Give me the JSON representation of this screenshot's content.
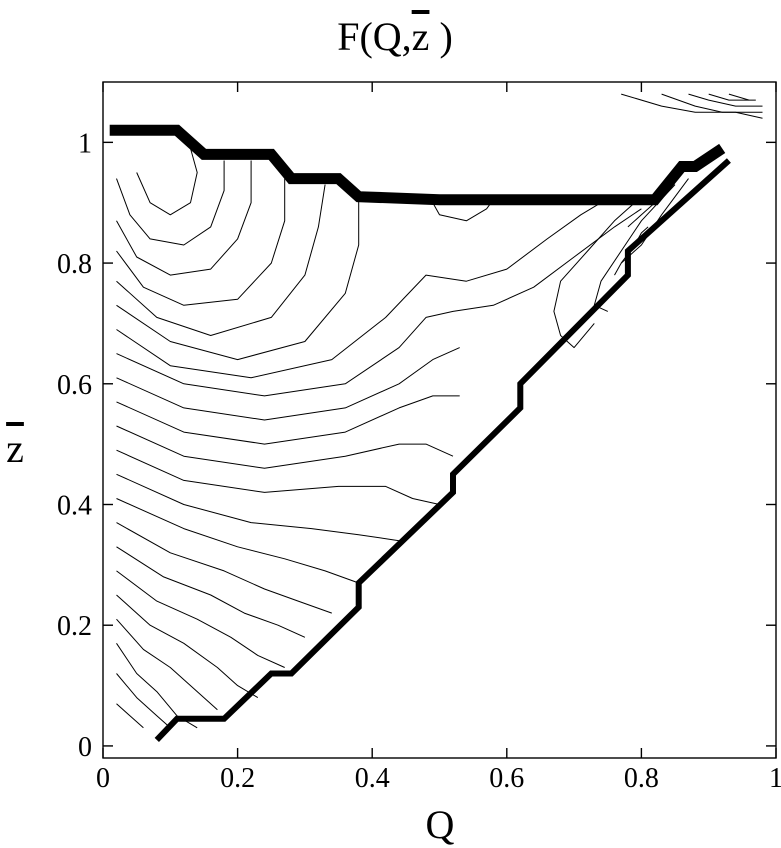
{
  "chart_data": {
    "type": "contour",
    "title_main": "F(Q,",
    "title_var": "z",
    "title_close": " )",
    "xlabel": "Q",
    "ylabel": "z",
    "xlim": [
      0,
      1
    ],
    "ylim": [
      -0.02,
      1.1
    ],
    "xticks": [
      0,
      0.2,
      0.4,
      0.6,
      0.8,
      1
    ],
    "xtick_labels": [
      "0",
      "0.2",
      "0.4",
      "0.6",
      "0.8",
      "1"
    ],
    "yticks": [
      0,
      0.2,
      0.4,
      0.6,
      0.8,
      1
    ],
    "ytick_labels": [
      "0",
      "0.2",
      "0.4",
      "0.6",
      "0.8",
      "1"
    ],
    "grid": false,
    "boundary_lower": [
      [
        0.08,
        0.01
      ],
      [
        0.11,
        0.045
      ],
      [
        0.18,
        0.045
      ],
      [
        0.25,
        0.12
      ],
      [
        0.28,
        0.12
      ],
      [
        0.38,
        0.23
      ],
      [
        0.38,
        0.27
      ],
      [
        0.52,
        0.42
      ],
      [
        0.52,
        0.45
      ],
      [
        0.62,
        0.56
      ],
      [
        0.62,
        0.6
      ],
      [
        0.78,
        0.78
      ],
      [
        0.78,
        0.82
      ],
      [
        0.93,
        0.97
      ]
    ],
    "boundary_upper": [
      [
        0.01,
        1.02
      ],
      [
        0.11,
        1.02
      ],
      [
        0.15,
        0.98
      ],
      [
        0.25,
        0.98
      ],
      [
        0.28,
        0.94
      ],
      [
        0.35,
        0.94
      ],
      [
        0.38,
        0.91
      ],
      [
        0.5,
        0.905
      ],
      [
        0.6,
        0.905
      ],
      [
        0.82,
        0.905
      ],
      [
        0.86,
        0.96
      ],
      [
        0.88,
        0.96
      ],
      [
        0.92,
        0.99
      ]
    ],
    "contours": [
      [
        [
          0.05,
          0.95
        ],
        [
          0.07,
          0.9
        ],
        [
          0.1,
          0.88
        ],
        [
          0.13,
          0.9
        ],
        [
          0.14,
          0.95
        ],
        [
          0.13,
          0.99
        ]
      ],
      [
        [
          0.02,
          0.94
        ],
        [
          0.04,
          0.88
        ],
        [
          0.07,
          0.84
        ],
        [
          0.12,
          0.83
        ],
        [
          0.16,
          0.86
        ],
        [
          0.18,
          0.92
        ],
        [
          0.18,
          0.97
        ]
      ],
      [
        [
          0.02,
          0.87
        ],
        [
          0.05,
          0.81
        ],
        [
          0.1,
          0.78
        ],
        [
          0.16,
          0.79
        ],
        [
          0.2,
          0.84
        ],
        [
          0.22,
          0.9
        ],
        [
          0.22,
          0.97
        ]
      ],
      [
        [
          0.02,
          0.82
        ],
        [
          0.06,
          0.76
        ],
        [
          0.12,
          0.73
        ],
        [
          0.2,
          0.74
        ],
        [
          0.25,
          0.8
        ],
        [
          0.27,
          0.87
        ],
        [
          0.27,
          0.94
        ]
      ],
      [
        [
          0.02,
          0.77
        ],
        [
          0.08,
          0.71
        ],
        [
          0.16,
          0.68
        ],
        [
          0.25,
          0.71
        ],
        [
          0.3,
          0.78
        ],
        [
          0.32,
          0.86
        ],
        [
          0.33,
          0.93
        ]
      ],
      [
        [
          0.02,
          0.73
        ],
        [
          0.1,
          0.67
        ],
        [
          0.2,
          0.64
        ],
        [
          0.3,
          0.67
        ],
        [
          0.36,
          0.75
        ],
        [
          0.38,
          0.83
        ],
        [
          0.38,
          0.91
        ]
      ],
      [
        [
          0.02,
          0.69
        ],
        [
          0.1,
          0.63
        ],
        [
          0.22,
          0.61
        ],
        [
          0.34,
          0.64
        ],
        [
          0.42,
          0.71
        ],
        [
          0.48,
          0.78
        ],
        [
          0.54,
          0.77
        ],
        [
          0.6,
          0.79
        ],
        [
          0.66,
          0.84
        ],
        [
          0.71,
          0.88
        ],
        [
          0.74,
          0.9
        ]
      ],
      [
        [
          0.02,
          0.65
        ],
        [
          0.12,
          0.6
        ],
        [
          0.24,
          0.58
        ],
        [
          0.36,
          0.6
        ],
        [
          0.44,
          0.66
        ],
        [
          0.48,
          0.71
        ],
        [
          0.52,
          0.72
        ],
        [
          0.58,
          0.73
        ],
        [
          0.64,
          0.76
        ],
        [
          0.7,
          0.81
        ],
        [
          0.76,
          0.86
        ],
        [
          0.8,
          0.89
        ]
      ],
      [
        [
          0.02,
          0.61
        ],
        [
          0.12,
          0.56
        ],
        [
          0.24,
          0.54
        ],
        [
          0.36,
          0.56
        ],
        [
          0.44,
          0.6
        ],
        [
          0.49,
          0.64
        ],
        [
          0.53,
          0.66
        ]
      ],
      [
        [
          0.02,
          0.57
        ],
        [
          0.12,
          0.52
        ],
        [
          0.24,
          0.5
        ],
        [
          0.36,
          0.52
        ],
        [
          0.44,
          0.56
        ],
        [
          0.49,
          0.58
        ],
        [
          0.53,
          0.58
        ]
      ],
      [
        [
          0.02,
          0.53
        ],
        [
          0.12,
          0.48
        ],
        [
          0.24,
          0.46
        ],
        [
          0.36,
          0.48
        ],
        [
          0.44,
          0.5
        ],
        [
          0.48,
          0.5
        ],
        [
          0.52,
          0.48
        ]
      ],
      [
        [
          0.02,
          0.49
        ],
        [
          0.12,
          0.44
        ],
        [
          0.24,
          0.42
        ],
        [
          0.35,
          0.43
        ],
        [
          0.42,
          0.43
        ],
        [
          0.46,
          0.41
        ],
        [
          0.5,
          0.4
        ]
      ],
      [
        [
          0.02,
          0.45
        ],
        [
          0.12,
          0.4
        ],
        [
          0.22,
          0.37
        ],
        [
          0.31,
          0.36
        ],
        [
          0.38,
          0.35
        ],
        [
          0.44,
          0.34
        ]
      ],
      [
        [
          0.02,
          0.41
        ],
        [
          0.12,
          0.36
        ],
        [
          0.2,
          0.33
        ],
        [
          0.27,
          0.31
        ],
        [
          0.33,
          0.29
        ],
        [
          0.38,
          0.27
        ]
      ],
      [
        [
          0.02,
          0.37
        ],
        [
          0.1,
          0.32
        ],
        [
          0.18,
          0.29
        ],
        [
          0.24,
          0.26
        ],
        [
          0.29,
          0.24
        ],
        [
          0.34,
          0.22
        ]
      ],
      [
        [
          0.02,
          0.33
        ],
        [
          0.09,
          0.28
        ],
        [
          0.16,
          0.25
        ],
        [
          0.21,
          0.22
        ],
        [
          0.26,
          0.2
        ],
        [
          0.3,
          0.18
        ]
      ],
      [
        [
          0.02,
          0.29
        ],
        [
          0.08,
          0.24
        ],
        [
          0.14,
          0.21
        ],
        [
          0.19,
          0.18
        ],
        [
          0.23,
          0.15
        ],
        [
          0.27,
          0.13
        ]
      ],
      [
        [
          0.02,
          0.25
        ],
        [
          0.07,
          0.2
        ],
        [
          0.12,
          0.17
        ],
        [
          0.17,
          0.13
        ],
        [
          0.2,
          0.1
        ],
        [
          0.23,
          0.08
        ]
      ],
      [
        [
          0.02,
          0.21
        ],
        [
          0.06,
          0.16
        ],
        [
          0.1,
          0.13
        ],
        [
          0.14,
          0.09
        ],
        [
          0.17,
          0.06
        ]
      ],
      [
        [
          0.02,
          0.17
        ],
        [
          0.05,
          0.12
        ],
        [
          0.08,
          0.09
        ],
        [
          0.11,
          0.05
        ],
        [
          0.14,
          0.03
        ]
      ],
      [
        [
          0.02,
          0.12
        ],
        [
          0.05,
          0.08
        ],
        [
          0.08,
          0.05
        ],
        [
          0.1,
          0.03
        ]
      ],
      [
        [
          0.02,
          0.07
        ],
        [
          0.04,
          0.05
        ],
        [
          0.06,
          0.03
        ]
      ],
      [
        [
          0.49,
          0.9
        ],
        [
          0.5,
          0.88
        ],
        [
          0.54,
          0.87
        ],
        [
          0.57,
          0.89
        ],
        [
          0.58,
          0.905
        ]
      ],
      [
        [
          0.8,
          0.91
        ],
        [
          0.76,
          0.87
        ],
        [
          0.72,
          0.82
        ],
        [
          0.68,
          0.77
        ],
        [
          0.67,
          0.72
        ],
        [
          0.68,
          0.68
        ],
        [
          0.7,
          0.66
        ],
        [
          0.73,
          0.7
        ]
      ],
      [
        [
          0.85,
          0.93
        ],
        [
          0.8,
          0.87
        ],
        [
          0.77,
          0.82
        ],
        [
          0.74,
          0.77
        ],
        [
          0.73,
          0.73
        ],
        [
          0.75,
          0.72
        ]
      ],
      [
        [
          0.87,
          0.94
        ],
        [
          0.83,
          0.88
        ],
        [
          0.8,
          0.83
        ],
        [
          0.77,
          0.8
        ],
        [
          0.76,
          0.78
        ]
      ],
      [
        [
          0.77,
          0.8
        ],
        [
          0.79,
          0.83
        ],
        [
          0.8,
          0.85
        ],
        [
          0.81,
          0.86
        ]
      ],
      [
        [
          0.78,
          0.86
        ],
        [
          0.8,
          0.88
        ],
        [
          0.82,
          0.9
        ]
      ],
      [
        [
          0.77,
          1.08
        ],
        [
          0.83,
          1.06
        ],
        [
          0.88,
          1.05
        ],
        [
          0.94,
          1.05
        ],
        [
          0.98,
          1.04
        ]
      ],
      [
        [
          0.83,
          1.08
        ],
        [
          0.88,
          1.06
        ],
        [
          0.92,
          1.05
        ],
        [
          0.98,
          1.05
        ]
      ],
      [
        [
          0.87,
          1.08
        ],
        [
          0.9,
          1.07
        ],
        [
          0.94,
          1.06
        ],
        [
          0.98,
          1.06
        ]
      ],
      [
        [
          0.9,
          1.08
        ],
        [
          0.93,
          1.07
        ],
        [
          0.97,
          1.07
        ]
      ],
      [
        [
          0.93,
          1.08
        ],
        [
          0.96,
          1.07
        ]
      ]
    ]
  }
}
